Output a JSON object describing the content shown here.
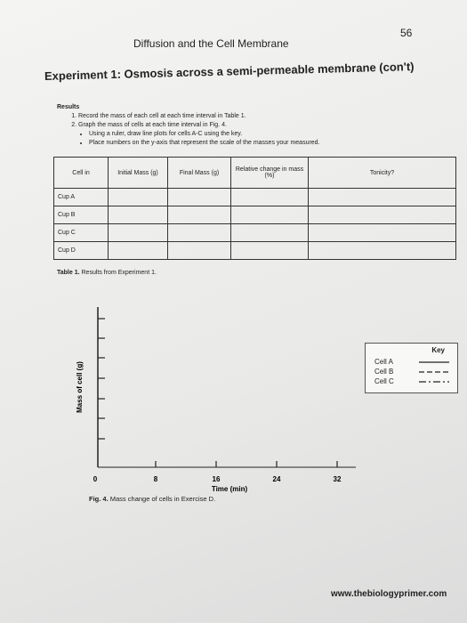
{
  "page_number": "56",
  "header": "Diffusion and the Cell Membrane",
  "title": "Experiment 1: Osmosis across a semi-permeable membrane (con't)",
  "results": {
    "heading": "Results",
    "steps": [
      "Record the mass of each cell at each time interval in Table 1.",
      "Graph the mass of cells at each time interval in Fig. 4."
    ],
    "bullets": [
      "Using a ruler, draw line plots for cells A-C using the key.",
      "Place numbers on the y-axis that represent the scale of the masses your measured."
    ]
  },
  "table": {
    "columns": [
      "Cell in",
      "Initial Mass (g)",
      "Final Mass (g)",
      "Relative change in mass (%)",
      "Tonicity?"
    ],
    "rows": [
      "Cup A",
      "Cup B",
      "Cup C",
      "Cup D"
    ],
    "caption_label": "Table 1.",
    "caption": "Results from Experiment 1."
  },
  "figure": {
    "y_label": "Mass of cell (g)",
    "x_label": "Time (min)",
    "xticks": [
      0,
      8,
      16,
      24,
      32
    ],
    "caption_label": "Fig. 4.",
    "caption": "Mass change of cells in Exercise D.",
    "key": {
      "title": "Key",
      "entries": [
        "Cell A",
        "Cell B",
        "Cell C"
      ]
    }
  },
  "footer": "www.thebiologyprimer.com"
}
